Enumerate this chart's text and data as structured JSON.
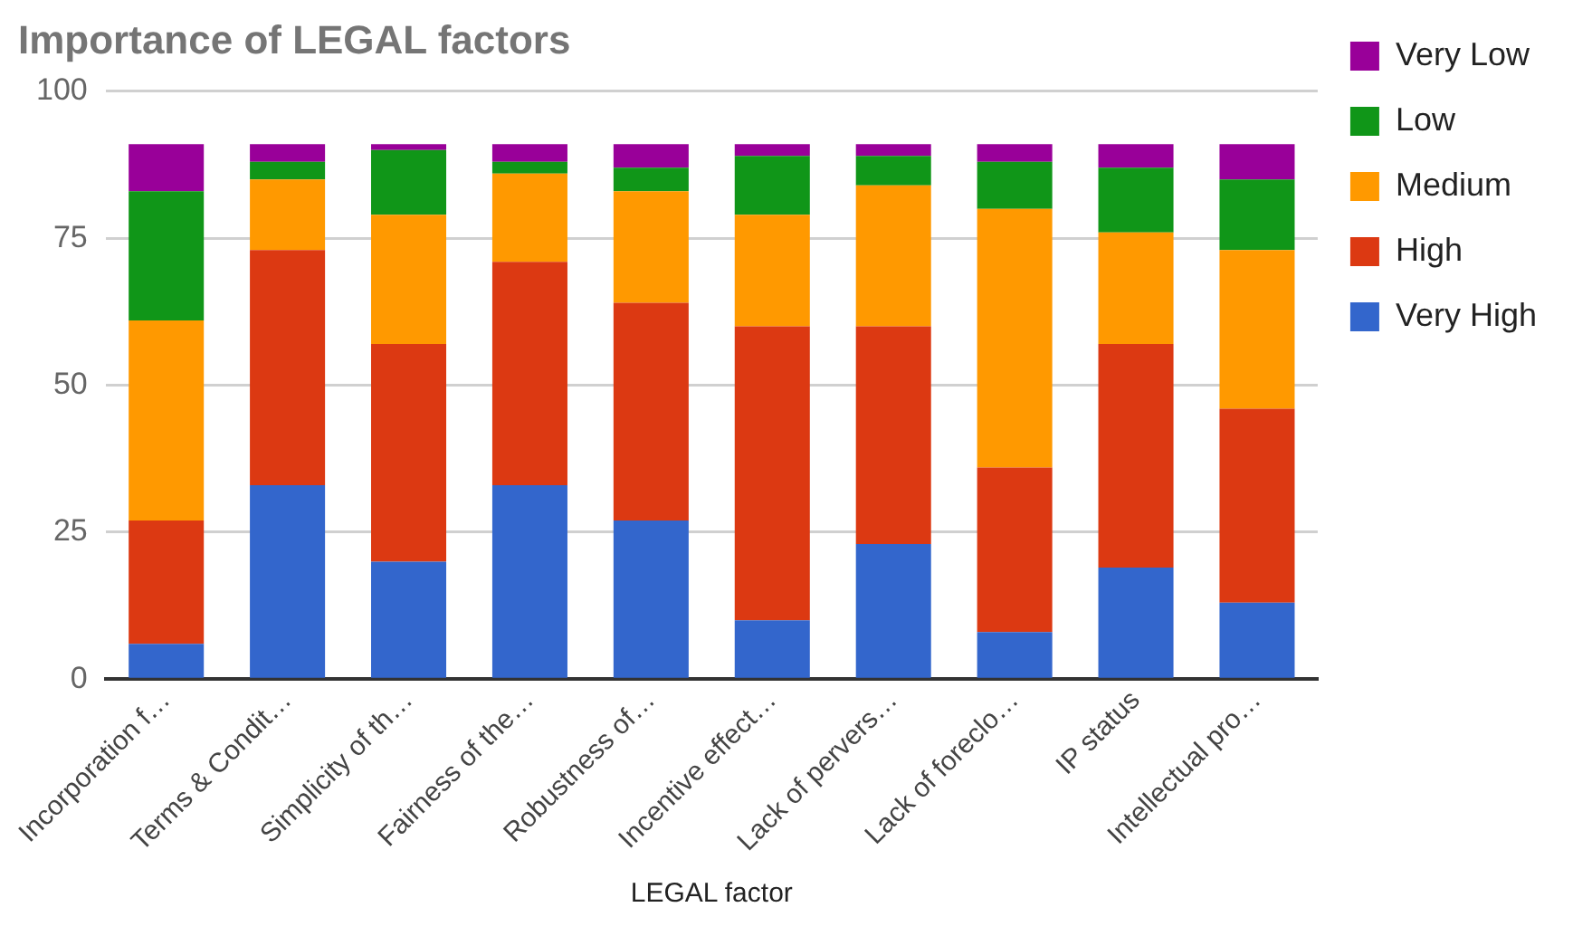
{
  "chart_data": {
    "type": "bar",
    "title": "Importance of LEGAL factors",
    "xlabel": "LEGAL factor",
    "categories": [
      "Incorporation f…",
      "Terms & Condit…",
      "Simplicity of th…",
      "Fairness of the…",
      "Robustness of…",
      "Incentive effect…",
      "Lack of pervers…",
      "Lack of foreclo…",
      "IP status",
      "Intellectual pro…"
    ],
    "series": [
      {
        "name": "Very High",
        "color": "#3366cc",
        "values": [
          6,
          33,
          20,
          33,
          27,
          10,
          23,
          8,
          19,
          13
        ]
      },
      {
        "name": "High",
        "color": "#dc3912",
        "values": [
          21,
          40,
          37,
          38,
          37,
          50,
          37,
          28,
          38,
          33
        ]
      },
      {
        "name": "Medium",
        "color": "#ff9900",
        "values": [
          34,
          12,
          22,
          15,
          19,
          19,
          24,
          44,
          19,
          27
        ]
      },
      {
        "name": "Low",
        "color": "#109618",
        "values": [
          22,
          3,
          11,
          2,
          4,
          10,
          5,
          8,
          11,
          12
        ]
      },
      {
        "name": "Very Low",
        "color": "#990099",
        "values": [
          8,
          3,
          1,
          3,
          4,
          2,
          2,
          3,
          4,
          6
        ]
      }
    ],
    "stacked": true,
    "ylim": [
      0,
      100
    ],
    "yticks": [
      0,
      25,
      50,
      75,
      100
    ],
    "grid": "y",
    "legend": "right"
  }
}
